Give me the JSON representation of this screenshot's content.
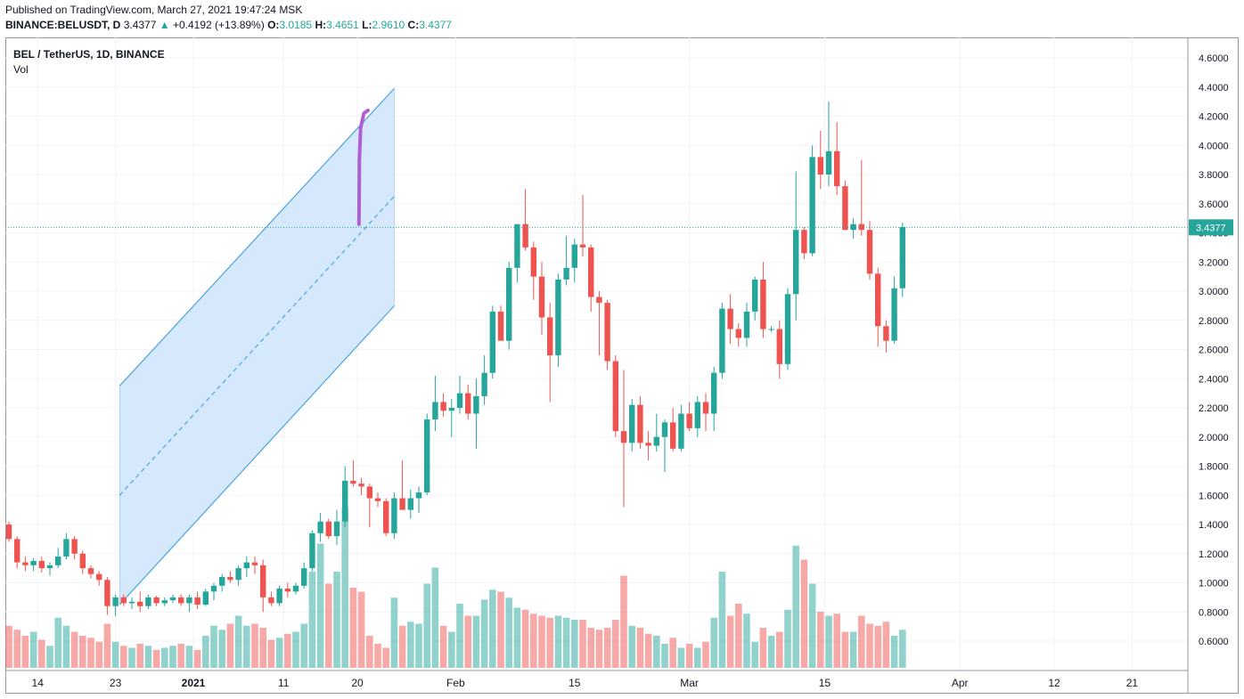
{
  "header": {
    "published": "Published on TradingView.com, March 27, 2021 19:47:24 MSK",
    "symbol": "BINANCE:BELUSDT, D",
    "last": "3.4377",
    "arrow": "▲",
    "change": "+0.4192 (+13.89%)",
    "o_label": "O:",
    "o_value": "3.0185",
    "h_label": "H:",
    "h_value": "3.4651",
    "l_label": "L:",
    "l_value": "2.9610",
    "c_label": "C:",
    "c_value": "3.4377"
  },
  "legend": {
    "title": "BEL / TetherUS, 1D, BINANCE",
    "sub": "Vol"
  },
  "price_label": "3.4377",
  "colors": {
    "up": "#26a69a",
    "down": "#ef5350",
    "channel_fill": "#cfe5fb",
    "channel_line": "#4aa3df",
    "drawing": "#b05fcf",
    "price_line": "#26a69a"
  },
  "chart_data": {
    "type": "candlestick",
    "title": "BEL / TetherUS, 1D, BINANCE",
    "ylim": [
      0.45,
      4.72
    ],
    "y_ticks": [
      "4.6000",
      "4.4000",
      "4.2000",
      "4.0000",
      "3.8000",
      "3.6000",
      "3.4000",
      "3.2000",
      "3.0000",
      "2.8000",
      "2.6000",
      "2.4000",
      "2.2000",
      "2.0000",
      "1.8000",
      "1.6000",
      "1.4000",
      "1.2000",
      "1.0000",
      "0.8000",
      "0.6000"
    ],
    "x_ticks": [
      "14",
      "23",
      "2021",
      "11",
      "20",
      "Feb",
      "15",
      "Mar",
      "15",
      "Apr",
      "12",
      "21"
    ],
    "grid": true,
    "candles": [
      [
        1.4,
        1.42,
        1.28,
        1.3
      ],
      [
        1.3,
        1.32,
        1.1,
        1.14
      ],
      [
        1.14,
        1.18,
        1.08,
        1.12
      ],
      [
        1.12,
        1.17,
        1.08,
        1.15
      ],
      [
        1.15,
        1.18,
        1.07,
        1.1
      ],
      [
        1.1,
        1.14,
        1.05,
        1.12
      ],
      [
        1.12,
        1.24,
        1.1,
        1.18
      ],
      [
        1.18,
        1.34,
        1.16,
        1.3
      ],
      [
        1.3,
        1.32,
        1.16,
        1.2
      ],
      [
        1.2,
        1.22,
        1.06,
        1.1
      ],
      [
        1.1,
        1.12,
        1.03,
        1.06
      ],
      [
        1.06,
        1.08,
        0.98,
        1.02
      ],
      [
        1.02,
        1.04,
        0.78,
        0.84
      ],
      [
        0.84,
        0.92,
        0.77,
        0.9
      ],
      [
        0.9,
        0.92,
        0.84,
        0.86
      ],
      [
        0.86,
        0.9,
        0.82,
        0.87
      ],
      [
        0.87,
        0.94,
        0.8,
        0.84
      ],
      [
        0.84,
        0.92,
        0.82,
        0.9
      ],
      [
        0.9,
        0.91,
        0.84,
        0.86
      ],
      [
        0.86,
        0.9,
        0.84,
        0.88
      ],
      [
        0.88,
        0.92,
        0.86,
        0.9
      ],
      [
        0.9,
        0.92,
        0.84,
        0.86
      ],
      [
        0.86,
        0.92,
        0.8,
        0.9
      ],
      [
        0.9,
        0.94,
        0.82,
        0.85
      ],
      [
        0.85,
        0.96,
        0.84,
        0.94
      ],
      [
        0.94,
        1.0,
        0.88,
        0.98
      ],
      [
        0.98,
        1.06,
        0.94,
        1.04
      ],
      [
        1.04,
        1.08,
        1.0,
        1.02
      ],
      [
        1.02,
        1.12,
        0.98,
        1.1
      ],
      [
        1.1,
        1.18,
        1.04,
        1.14
      ],
      [
        1.14,
        1.18,
        1.06,
        1.12
      ],
      [
        1.12,
        1.16,
        0.8,
        0.9
      ],
      [
        0.9,
        0.94,
        0.84,
        0.86
      ],
      [
        0.86,
        0.98,
        0.84,
        0.96
      ],
      [
        0.96,
        1.0,
        0.9,
        0.94
      ],
      [
        0.94,
        1.0,
        0.92,
        0.98
      ],
      [
        0.98,
        1.14,
        0.96,
        1.1
      ],
      [
        1.1,
        1.36,
        1.08,
        1.34
      ],
      [
        1.34,
        1.48,
        1.28,
        1.42
      ],
      [
        1.42,
        1.44,
        1.3,
        1.32
      ],
      [
        1.32,
        1.5,
        1.26,
        1.42
      ],
      [
        1.42,
        1.8,
        1.38,
        1.7
      ],
      [
        1.7,
        1.84,
        1.66,
        1.68
      ],
      [
        1.68,
        1.72,
        1.6,
        1.66
      ],
      [
        1.66,
        1.68,
        1.38,
        1.58
      ],
      [
        1.58,
        1.62,
        1.52,
        1.56
      ],
      [
        1.56,
        1.58,
        1.32,
        1.34
      ],
      [
        1.34,
        1.62,
        1.3,
        1.58
      ],
      [
        1.58,
        1.84,
        1.54,
        1.5
      ],
      [
        1.5,
        1.64,
        1.44,
        1.58
      ],
      [
        1.58,
        1.66,
        1.48,
        1.62
      ],
      [
        1.62,
        2.16,
        1.6,
        2.12
      ],
      [
        2.12,
        2.42,
        2.04,
        2.24
      ],
      [
        2.24,
        2.3,
        2.14,
        2.18
      ],
      [
        2.18,
        2.26,
        2.0,
        2.2
      ],
      [
        2.2,
        2.42,
        2.16,
        2.3
      ],
      [
        2.3,
        2.36,
        2.12,
        2.16
      ],
      [
        2.16,
        2.4,
        1.92,
        2.28
      ],
      [
        2.28,
        2.56,
        2.22,
        2.44
      ],
      [
        2.44,
        2.9,
        2.4,
        2.86
      ],
      [
        2.86,
        2.9,
        2.7,
        2.66
      ],
      [
        2.66,
        3.2,
        2.6,
        3.16
      ],
      [
        3.16,
        3.44,
        3.06,
        3.46
      ],
      [
        3.46,
        3.7,
        3.28,
        3.3
      ],
      [
        3.3,
        3.34,
        2.94,
        3.1
      ],
      [
        3.1,
        3.2,
        2.7,
        2.82
      ],
      [
        2.82,
        2.92,
        2.24,
        2.56
      ],
      [
        2.56,
        3.12,
        2.48,
        3.08
      ],
      [
        3.08,
        3.38,
        3.04,
        3.16
      ],
      [
        3.16,
        3.36,
        3.06,
        3.32
      ],
      [
        3.32,
        3.66,
        3.24,
        3.3
      ],
      [
        3.3,
        3.32,
        2.86,
        2.96
      ],
      [
        2.96,
        3.0,
        2.56,
        2.92
      ],
      [
        2.92,
        2.94,
        2.46,
        2.52
      ],
      [
        2.52,
        2.56,
        2.0,
        2.04
      ],
      [
        2.04,
        2.46,
        1.52,
        1.96
      ],
      [
        1.96,
        2.26,
        1.9,
        2.22
      ],
      [
        2.22,
        2.28,
        1.92,
        1.96
      ],
      [
        1.96,
        2.04,
        1.84,
        1.94
      ],
      [
        1.94,
        2.16,
        1.9,
        2.0
      ],
      [
        2.0,
        2.12,
        1.76,
        2.1
      ],
      [
        2.1,
        2.2,
        1.9,
        1.92
      ],
      [
        1.92,
        2.22,
        1.9,
        2.16
      ],
      [
        2.16,
        2.24,
        2.04,
        2.06
      ],
      [
        2.06,
        2.28,
        2.0,
        2.24
      ],
      [
        2.24,
        2.3,
        2.04,
        2.16
      ],
      [
        2.16,
        2.48,
        2.04,
        2.44
      ],
      [
        2.44,
        2.92,
        2.4,
        2.88
      ],
      [
        2.88,
        2.98,
        2.64,
        2.74
      ],
      [
        2.74,
        2.78,
        2.62,
        2.68
      ],
      [
        2.68,
        2.92,
        2.62,
        2.86
      ],
      [
        2.86,
        3.1,
        2.8,
        3.08
      ],
      [
        3.08,
        3.2,
        2.68,
        2.74
      ],
      [
        2.74,
        2.76,
        2.72,
        2.74
      ],
      [
        2.74,
        2.8,
        2.4,
        2.5
      ],
      [
        2.5,
        3.02,
        2.46,
        2.98
      ],
      [
        2.98,
        3.82,
        2.8,
        3.42
      ],
      [
        3.42,
        3.44,
        3.22,
        3.26
      ],
      [
        3.26,
        4.0,
        3.24,
        3.92
      ],
      [
        3.92,
        4.1,
        3.7,
        3.8
      ],
      [
        3.8,
        4.3,
        3.72,
        3.96
      ],
      [
        3.96,
        4.16,
        3.66,
        3.72
      ],
      [
        3.72,
        3.76,
        3.42,
        3.42
      ],
      [
        3.42,
        3.5,
        3.36,
        3.46
      ],
      [
        3.46,
        3.9,
        3.38,
        3.42
      ],
      [
        3.42,
        3.48,
        3.08,
        3.12
      ],
      [
        3.12,
        3.16,
        2.62,
        2.76
      ],
      [
        2.76,
        2.8,
        2.58,
        2.66
      ],
      [
        2.66,
        3.1,
        2.64,
        3.02
      ],
      [
        3.02,
        3.47,
        2.96,
        3.44
      ]
    ],
    "volume_ylim": [
      0,
      3.2
    ],
    "volume": [
      1.05,
      0.95,
      0.8,
      0.9,
      0.7,
      0.55,
      1.25,
      1.05,
      0.9,
      0.8,
      0.75,
      0.65,
      1.1,
      0.65,
      0.55,
      0.5,
      0.6,
      0.55,
      0.45,
      0.5,
      0.55,
      0.6,
      0.55,
      0.45,
      0.8,
      1.05,
      0.95,
      1.1,
      1.3,
      1.05,
      1.1,
      1.0,
      0.7,
      0.75,
      0.85,
      0.9,
      1.1,
      2.4,
      3.1,
      2.1,
      2.4,
      4.0,
      2.0,
      1.9,
      0.8,
      0.6,
      0.5,
      1.75,
      1.05,
      1.15,
      1.1,
      2.1,
      2.5,
      1.05,
      0.9,
      1.6,
      1.3,
      1.3,
      1.7,
      1.95,
      1.9,
      1.75,
      1.5,
      1.45,
      1.35,
      1.3,
      1.25,
      1.3,
      1.25,
      1.2,
      1.2,
      1.0,
      0.95,
      1.0,
      1.2,
      2.3,
      1.05,
      1.0,
      0.85,
      0.8,
      0.6,
      0.75,
      0.5,
      0.6,
      0.5,
      0.65,
      1.25,
      2.4,
      1.3,
      1.6,
      1.35,
      0.65,
      1.0,
      0.8,
      0.9,
      1.45,
      3.05,
      2.7,
      2.1,
      1.4,
      1.3,
      1.35,
      0.9,
      0.9,
      1.3,
      1.1,
      1.05,
      1.15,
      0.8,
      0.95
    ],
    "channel": {
      "upper": [
        [
          13.5,
          2.35
        ],
        [
          47.0,
          4.39
        ]
      ],
      "mid": [
        [
          13.5,
          1.6
        ],
        [
          47.0,
          3.65
        ]
      ],
      "lower": [
        [
          13.5,
          0.85
        ],
        [
          47.0,
          2.9
        ]
      ]
    },
    "drawing_path": [
      [
        42.7,
        3.46
      ],
      [
        42.75,
        3.9
      ],
      [
        42.9,
        4.12
      ],
      [
        43.3,
        4.22
      ],
      [
        43.8,
        4.24
      ]
    ]
  }
}
